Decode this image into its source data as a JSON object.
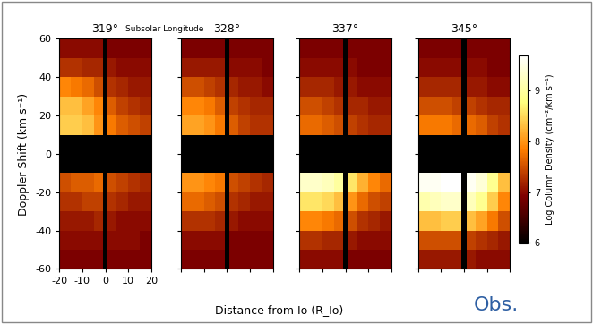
{
  "chart_data": [
    {
      "type": "heatmap",
      "title": "319°",
      "tick_labels": true,
      "xlim": [
        -20,
        20
      ],
      "ylim": [
        -60,
        60
      ],
      "xticks": [
        -20,
        -10,
        0,
        10,
        20
      ],
      "yticks": [
        -60,
        -40,
        -20,
        0,
        20,
        40,
        60
      ],
      "x_edges": [
        -20,
        -15,
        -10,
        -5,
        -1,
        1,
        5,
        10,
        15,
        20
      ],
      "y_edges": [
        -60,
        -50,
        -40,
        -30,
        -20,
        -10,
        10,
        20,
        30,
        40,
        50,
        60
      ],
      "values": [
        [
          6.9,
          6.9,
          6.9,
          6.9,
          null,
          6.9,
          6.9,
          6.9,
          6.9
        ],
        [
          7.0,
          7.0,
          7.0,
          7.0,
          null,
          7.0,
          7.0,
          7.0,
          6.9
        ],
        [
          7.1,
          7.1,
          7.1,
          7.2,
          null,
          7.1,
          7.0,
          7.0,
          7.0
        ],
        [
          7.3,
          7.3,
          7.4,
          7.4,
          null,
          7.3,
          7.2,
          7.1,
          7.1
        ],
        [
          7.5,
          7.6,
          7.6,
          7.7,
          null,
          7.5,
          7.4,
          7.3,
          7.2
        ],
        [
          null,
          null,
          null,
          null,
          null,
          null,
          null,
          null,
          null
        ],
        [
          8.4,
          8.4,
          8.3,
          8.0,
          null,
          7.8,
          7.6,
          7.5,
          7.4
        ],
        [
          8.3,
          8.3,
          8.1,
          7.9,
          null,
          7.6,
          7.4,
          7.3,
          7.2
        ],
        [
          7.9,
          7.8,
          7.7,
          7.5,
          null,
          7.3,
          7.2,
          7.1,
          7.1
        ],
        [
          7.3,
          7.3,
          7.2,
          7.2,
          null,
          7.1,
          7.0,
          7.0,
          7.0
        ],
        [
          7.0,
          7.0,
          7.0,
          7.0,
          null,
          6.9,
          6.9,
          6.9,
          6.9
        ]
      ]
    },
    {
      "type": "heatmap",
      "title": "328°",
      "tick_labels": false,
      "xlim": [
        -20,
        20
      ],
      "ylim": [
        -60,
        60
      ],
      "xticks": [
        -20,
        -10,
        0,
        10,
        20
      ],
      "yticks": [
        -60,
        -40,
        -20,
        0,
        20,
        40,
        60
      ],
      "x_edges": [
        -20,
        -15,
        -10,
        -5,
        -1,
        1,
        5,
        10,
        15,
        20
      ],
      "y_edges": [
        -60,
        -50,
        -40,
        -30,
        -20,
        -10,
        10,
        20,
        30,
        40,
        50,
        60
      ],
      "values": [
        [
          6.9,
          6.9,
          6.9,
          6.9,
          null,
          6.9,
          6.9,
          6.9,
          6.9
        ],
        [
          7.0,
          7.0,
          7.0,
          7.0,
          null,
          6.9,
          6.9,
          6.9,
          6.9
        ],
        [
          7.3,
          7.3,
          7.3,
          7.2,
          null,
          7.1,
          7.0,
          7.0,
          7.0
        ],
        [
          7.7,
          7.7,
          7.6,
          7.5,
          null,
          7.3,
          7.2,
          7.1,
          7.1
        ],
        [
          8.0,
          8.0,
          7.9,
          7.8,
          null,
          7.5,
          7.4,
          7.3,
          7.2
        ],
        [
          null,
          null,
          null,
          null,
          null,
          null,
          null,
          null,
          null
        ],
        [
          8.1,
          8.1,
          8.0,
          7.8,
          null,
          7.6,
          7.4,
          7.3,
          7.3
        ],
        [
          7.9,
          7.9,
          7.8,
          7.6,
          null,
          7.4,
          7.3,
          7.2,
          7.2
        ],
        [
          7.5,
          7.5,
          7.4,
          7.3,
          null,
          7.2,
          7.1,
          7.1,
          7.0
        ],
        [
          7.1,
          7.1,
          7.1,
          7.1,
          null,
          7.0,
          7.0,
          7.0,
          6.9
        ],
        [
          6.9,
          6.9,
          6.9,
          6.9,
          null,
          6.9,
          6.9,
          6.9,
          6.9
        ]
      ]
    },
    {
      "type": "heatmap",
      "title": "337°",
      "tick_labels": false,
      "xlim": [
        -20,
        20
      ],
      "ylim": [
        -60,
        60
      ],
      "xticks": [
        -20,
        -10,
        0,
        10,
        20
      ],
      "yticks": [
        -60,
        -40,
        -20,
        0,
        20,
        40,
        60
      ],
      "x_edges": [
        -20,
        -15,
        -10,
        -5,
        -1,
        1,
        5,
        10,
        15,
        20
      ],
      "y_edges": [
        -60,
        -50,
        -40,
        -30,
        -20,
        -10,
        10,
        20,
        30,
        40,
        50,
        60
      ],
      "values": [
        [
          7.0,
          7.0,
          7.0,
          7.0,
          null,
          6.9,
          6.9,
          6.9,
          6.9
        ],
        [
          7.3,
          7.3,
          7.2,
          7.2,
          null,
          7.1,
          7.0,
          7.0,
          7.0
        ],
        [
          7.9,
          7.9,
          7.8,
          7.7,
          null,
          7.5,
          7.3,
          7.2,
          7.1
        ],
        [
          8.6,
          8.6,
          8.5,
          8.3,
          null,
          8.0,
          7.7,
          7.5,
          7.4
        ],
        [
          9.3,
          9.3,
          9.2,
          9.0,
          null,
          8.6,
          8.2,
          7.9,
          7.7
        ],
        [
          null,
          null,
          null,
          null,
          null,
          null,
          null,
          null,
          null
        ],
        [
          7.7,
          7.7,
          7.6,
          7.5,
          null,
          7.4,
          7.3,
          7.2,
          7.2
        ],
        [
          7.5,
          7.5,
          7.4,
          7.3,
          null,
          7.2,
          7.2,
          7.1,
          7.1
        ],
        [
          7.2,
          7.2,
          7.2,
          7.1,
          null,
          7.1,
          7.0,
          7.0,
          7.0
        ],
        [
          7.0,
          7.0,
          7.0,
          7.0,
          null,
          7.0,
          6.9,
          6.9,
          6.9
        ],
        [
          6.9,
          6.9,
          6.9,
          6.9,
          null,
          6.9,
          6.9,
          6.9,
          6.9
        ]
      ]
    },
    {
      "type": "heatmap",
      "title": "345°",
      "tick_labels": false,
      "xlim": [
        -20,
        20
      ],
      "ylim": [
        -60,
        60
      ],
      "xticks": [
        -20,
        -10,
        0,
        10,
        20
      ],
      "yticks": [
        -60,
        -40,
        -20,
        0,
        20,
        40,
        60
      ],
      "x_edges": [
        -20,
        -15,
        -10,
        -5,
        -1,
        1,
        5,
        10,
        15,
        20
      ],
      "y_edges": [
        -60,
        -50,
        -40,
        -30,
        -20,
        -10,
        10,
        20,
        30,
        40,
        50,
        60
      ],
      "values": [
        [
          7.1,
          7.1,
          7.1,
          7.1,
          null,
          7.1,
          7.0,
          7.0,
          7.0
        ],
        [
          7.5,
          7.5,
          7.5,
          7.5,
          null,
          7.4,
          7.3,
          7.2,
          7.1
        ],
        [
          8.3,
          8.3,
          8.4,
          8.4,
          null,
          8.3,
          8.1,
          7.8,
          7.5
        ],
        [
          9.1,
          9.2,
          9.3,
          9.3,
          null,
          9.2,
          8.9,
          8.4,
          7.9
        ],
        [
          9.6,
          9.6,
          9.7,
          9.7,
          null,
          9.6,
          9.4,
          8.9,
          8.3
        ],
        [
          null,
          null,
          null,
          null,
          null,
          null,
          null,
          null,
          null
        ],
        [
          7.8,
          7.8,
          7.8,
          7.7,
          null,
          7.7,
          7.6,
          7.4,
          7.3
        ],
        [
          7.5,
          7.5,
          7.5,
          7.4,
          null,
          7.4,
          7.3,
          7.2,
          7.2
        ],
        [
          7.2,
          7.2,
          7.2,
          7.2,
          null,
          7.1,
          7.1,
          7.0,
          7.0
        ],
        [
          7.0,
          7.0,
          7.0,
          7.0,
          null,
          7.0,
          7.0,
          6.9,
          6.9
        ],
        [
          6.9,
          6.9,
          6.9,
          6.9,
          null,
          6.9,
          6.9,
          6.9,
          6.9
        ]
      ]
    }
  ],
  "figure": {
    "ylabel": "Doppler Shift (km s⁻¹)",
    "xlabel": "Distance from Io (R_Io)",
    "subtitle": "Subsolar Longitude",
    "note": "Obs.",
    "colorbar": {
      "label": "Log Column Density (cm⁻²/km s⁻¹)",
      "range": [
        6,
        9.7
      ],
      "ticks": [
        6,
        7,
        8,
        9
      ]
    }
  }
}
